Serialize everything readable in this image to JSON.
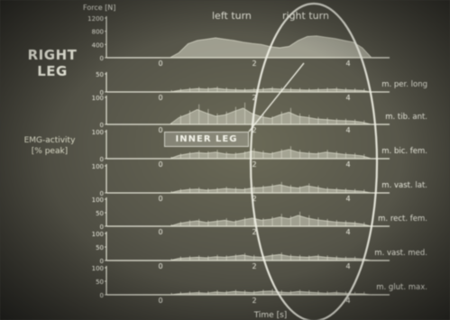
{
  "chart_data": {
    "type": "area",
    "top_labels": {
      "left_turn": "left turn",
      "right_turn": "right turn",
      "force_header": "Force [N]"
    },
    "leg_label_lines": [
      "RIGHT",
      "LEG"
    ],
    "emg_label_lines": [
      "EMG-activity",
      "[% peak]"
    ],
    "overlay_label": "INNER LEG",
    "xlabel": "Time [s]",
    "x_ticks": [
      "0",
      "2",
      "4"
    ],
    "xlim": [
      0,
      4.5
    ],
    "panels": [
      {
        "name": "force",
        "label": "",
        "y_ticks": [
          "1200",
          "800",
          "400",
          "0"
        ],
        "ylim": [
          0,
          1200
        ],
        "values": [
          0,
          0,
          150,
          420,
          520,
          560,
          600,
          560,
          520,
          470,
          430,
          400,
          330,
          300,
          340,
          520,
          640,
          660,
          620,
          580,
          520,
          470,
          300,
          0
        ]
      },
      {
        "name": "m. per. long",
        "label": "m. per. long",
        "y_ticks": [
          "50",
          "0"
        ],
        "ylim": [
          0,
          100
        ],
        "values": [
          0,
          0,
          8,
          14,
          18,
          16,
          20,
          15,
          12,
          10,
          12,
          14,
          18,
          16,
          14,
          12,
          10,
          12,
          14,
          16,
          12,
          10,
          8,
          0
        ]
      },
      {
        "name": "m. tib. ant.",
        "label": "m. tib. ant.",
        "y_ticks": [
          "100",
          "0"
        ],
        "ylim": [
          0,
          100
        ],
        "values": [
          0,
          0,
          25,
          38,
          55,
          42,
          30,
          35,
          48,
          60,
          40,
          28,
          22,
          35,
          45,
          30,
          26,
          20,
          18,
          15,
          14,
          12,
          8,
          0
        ]
      },
      {
        "name": "m. bic. fem.",
        "label": "m. bic. fem.",
        "y_ticks": [
          "100",
          "0"
        ],
        "ylim": [
          0,
          100
        ],
        "values": [
          0,
          0,
          12,
          18,
          22,
          20,
          24,
          18,
          16,
          20,
          28,
          22,
          18,
          26,
          34,
          24,
          20,
          18,
          24,
          20,
          16,
          14,
          10,
          0
        ]
      },
      {
        "name": "m. vast. lat.",
        "label": "m. vast. lat.",
        "y_ticks": [
          "100",
          "0"
        ],
        "ylim": [
          0,
          100
        ],
        "values": [
          0,
          0,
          8,
          12,
          14,
          10,
          12,
          16,
          14,
          12,
          18,
          20,
          24,
          30,
          22,
          18,
          26,
          20,
          14,
          12,
          10,
          8,
          6,
          0
        ]
      },
      {
        "name": "m. rect. fem.",
        "label": "m. rect. fem.",
        "y_ticks": [
          "100",
          "50",
          "0"
        ],
        "ylim": [
          0,
          100
        ],
        "values": [
          0,
          0,
          10,
          16,
          20,
          14,
          18,
          22,
          16,
          24,
          30,
          22,
          26,
          34,
          28,
          40,
          30,
          24,
          20,
          16,
          14,
          12,
          8,
          0
        ]
      },
      {
        "name": "m. vast. med.",
        "label": "m. vast. med.",
        "y_ticks": [
          "100",
          "50",
          "0"
        ],
        "ylim": [
          0,
          100
        ],
        "values": [
          0,
          0,
          8,
          10,
          12,
          10,
          14,
          12,
          16,
          20,
          14,
          12,
          18,
          22,
          16,
          14,
          12,
          16,
          12,
          10,
          8,
          8,
          6,
          0
        ]
      },
      {
        "name": "m. glut. max.",
        "label": "m. glut. max.",
        "y_ticks": [
          "100",
          "50",
          "0"
        ],
        "ylim": [
          0,
          100
        ],
        "values": [
          0,
          0,
          4,
          6,
          8,
          6,
          10,
          8,
          12,
          10,
          8,
          12,
          14,
          10,
          8,
          12,
          10,
          8,
          6,
          8,
          6,
          4,
          4,
          0
        ]
      }
    ],
    "grid": false
  },
  "colors": {
    "trace": "#d9d9c9",
    "axis": "#e4e4d6",
    "text": "#ecece0",
    "ellipse": "#f1f1e6"
  }
}
